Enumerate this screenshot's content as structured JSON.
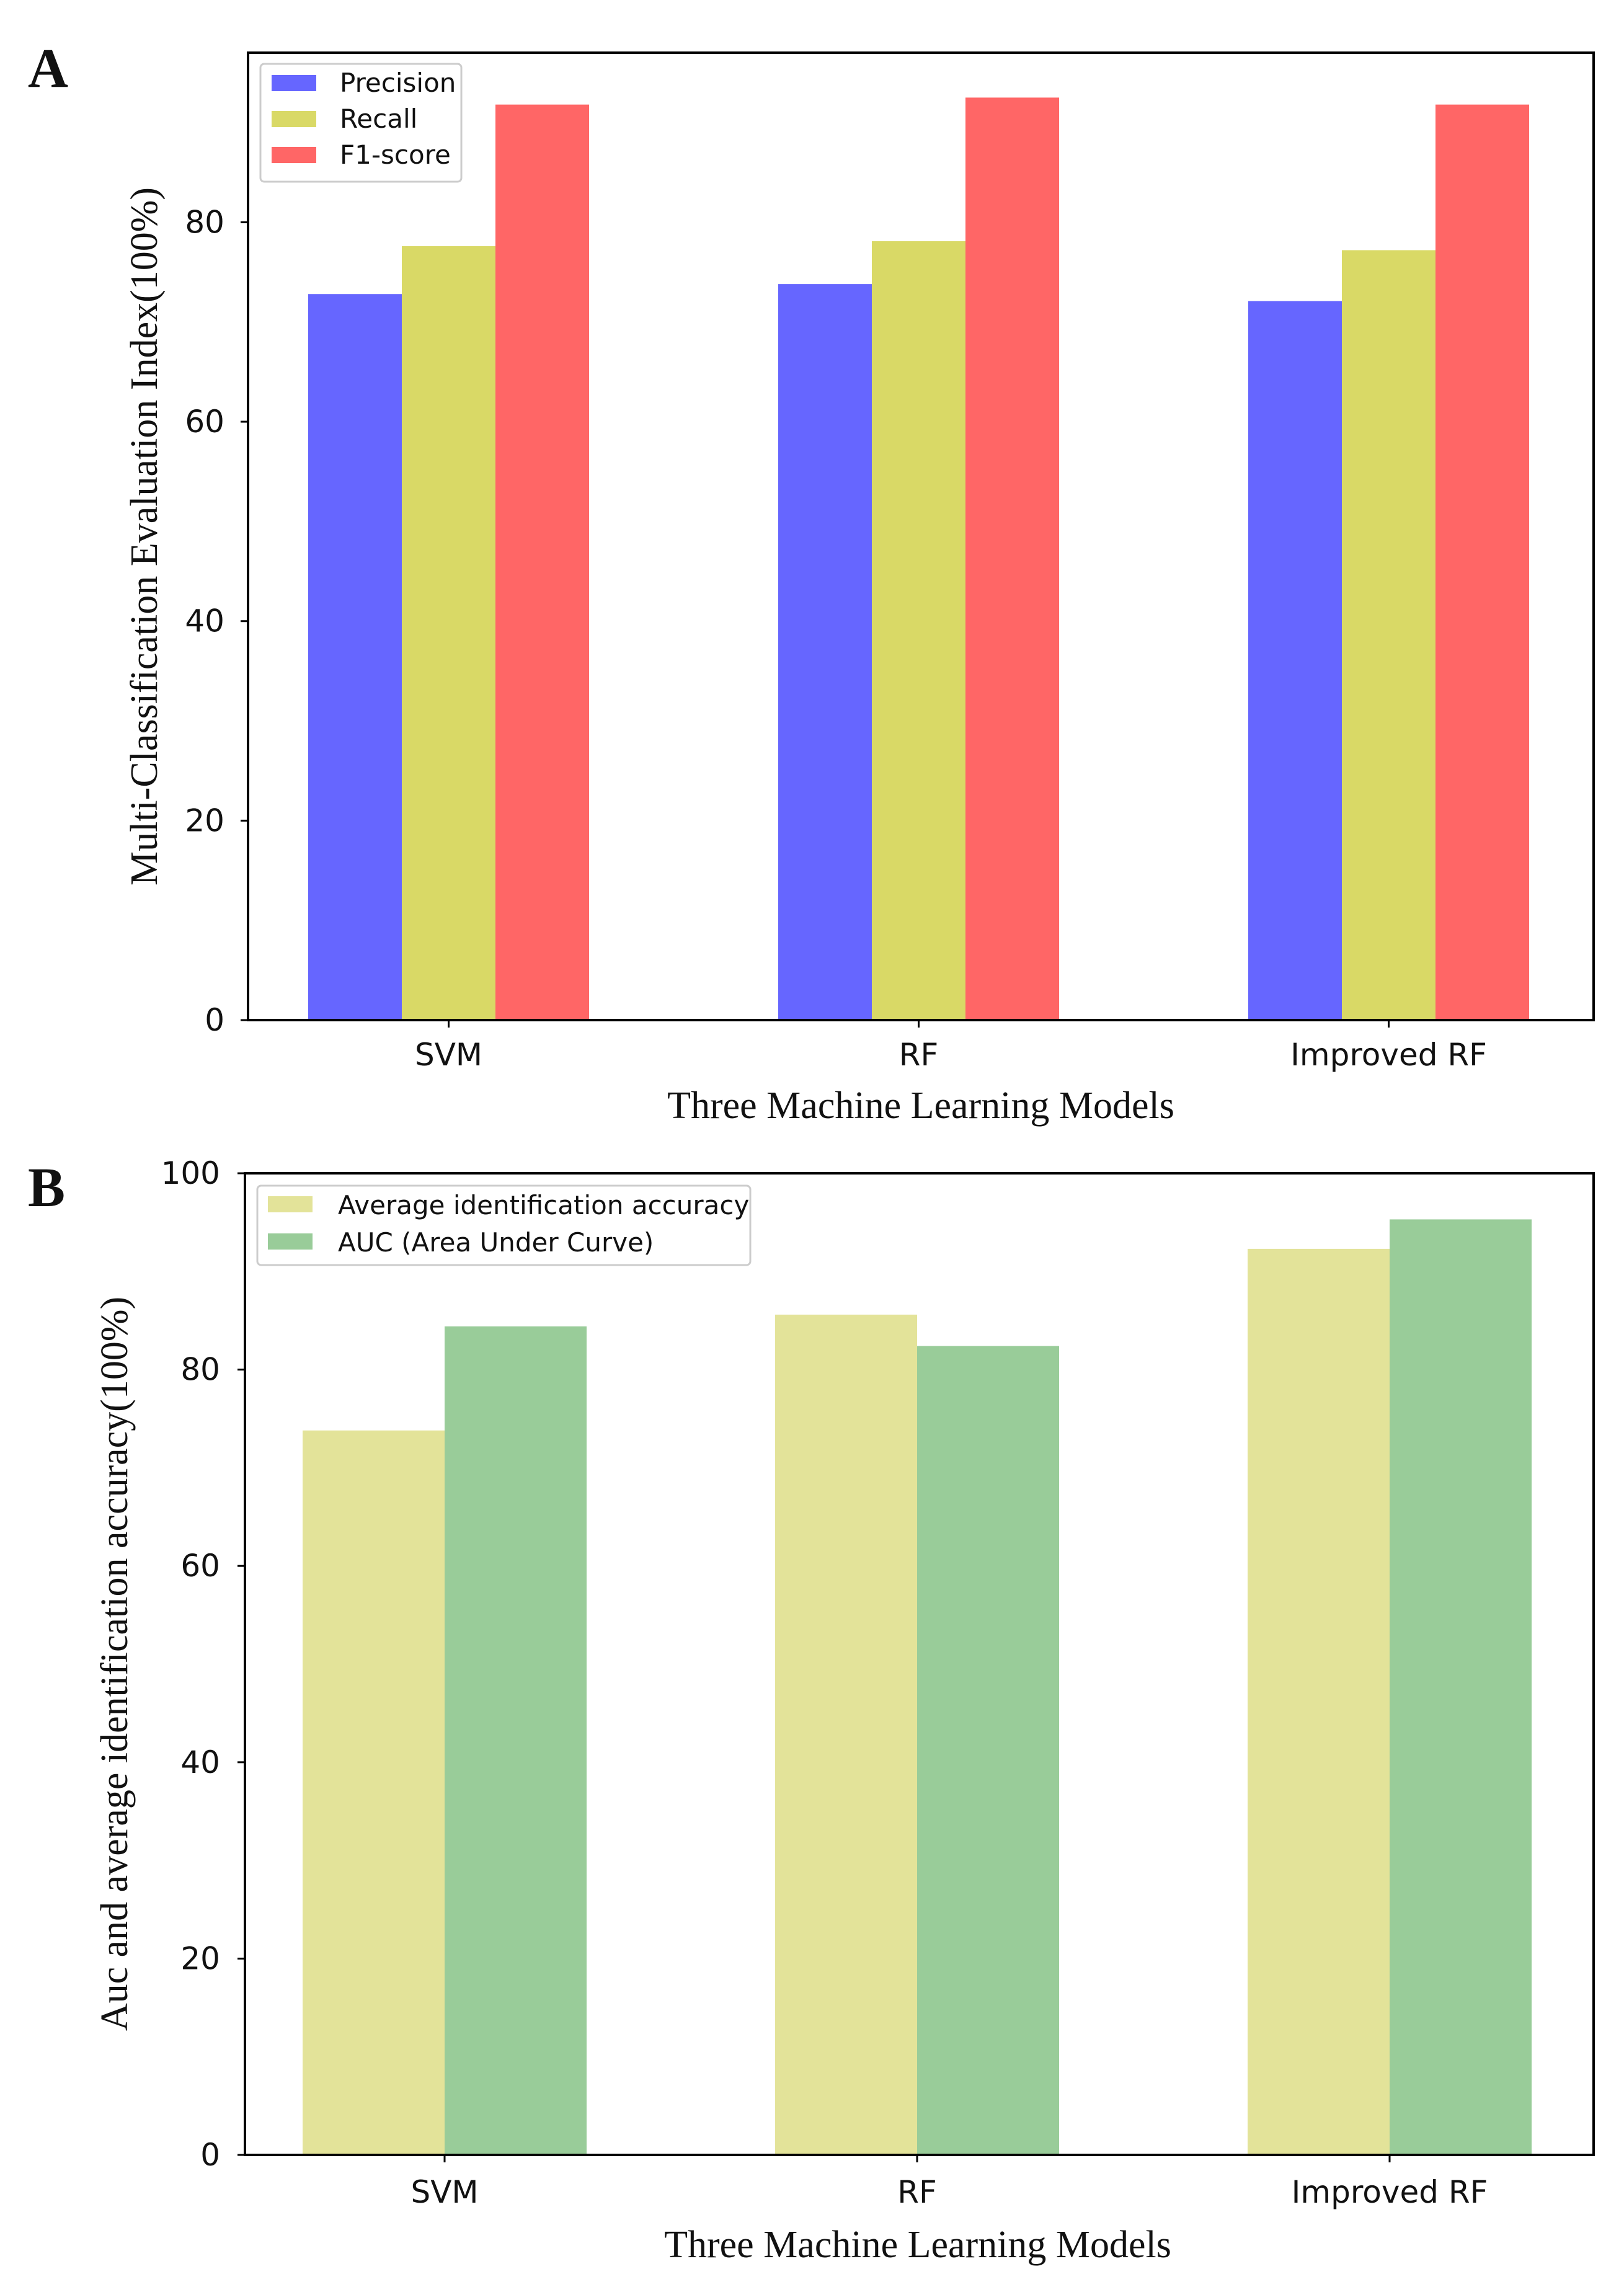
{
  "chart_data": [
    {
      "type": "bar",
      "panel_label": "A",
      "categories": [
        "SVM",
        "RF",
        "Improved RF"
      ],
      "series": [
        {
          "name": "Precision",
          "values": [
            72.8,
            73.8,
            72.1
          ],
          "color": "#6666ff"
        },
        {
          "name": "Recall",
          "values": [
            77.6,
            78.1,
            77.2
          ],
          "color": "#d9d966"
        },
        {
          "name": "F1-score",
          "values": [
            91.8,
            92.5,
            91.8
          ],
          "color": "#ff6666"
        }
      ],
      "xlabel": "Three Machine Learning Models",
      "ylabel": "Multi-Classification Evaluation Index(100%)",
      "ylim": [
        0,
        97
      ],
      "yticks": [
        "0",
        "20",
        "40",
        "60",
        "80"
      ],
      "legend_position": "top-left"
    },
    {
      "type": "bar",
      "panel_label": "B",
      "categories": [
        "SVM",
        "RF",
        "Improved RF"
      ],
      "series": [
        {
          "name": "Average identification accuracy",
          "values": [
            73.8,
            85.6,
            92.3
          ],
          "color": "#e3e399"
        },
        {
          "name": "AUC (Area Under Curve)",
          "values": [
            84.4,
            82.4,
            95.3
          ],
          "color": "#99cc99"
        }
      ],
      "xlabel": "Three Machine Learning Models",
      "ylabel": "Auc and average identification accuracy(100%)",
      "ylim": [
        0,
        100
      ],
      "yticks": [
        "0",
        "20",
        "40",
        "60",
        "80",
        "100"
      ],
      "legend_position": "top-left"
    }
  ]
}
